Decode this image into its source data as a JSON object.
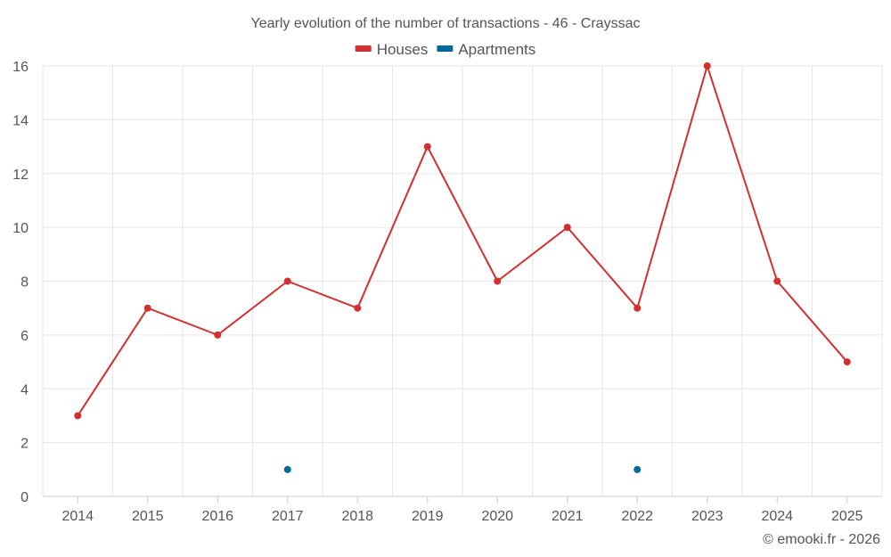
{
  "chart_data": {
    "type": "line",
    "title": "Yearly evolution of the number of transactions - 46 - Crayssac",
    "categories": [
      "2014",
      "2015",
      "2016",
      "2017",
      "2018",
      "2019",
      "2020",
      "2021",
      "2022",
      "2023",
      "2024",
      "2025"
    ],
    "series": [
      {
        "name": "Houses",
        "color": "#d32f2f",
        "values": [
          3,
          7,
          6,
          8,
          7,
          13,
          8,
          10,
          7,
          16,
          8,
          5
        ]
      },
      {
        "name": "Apartments",
        "color": "#01689b",
        "values": [
          null,
          null,
          null,
          1,
          null,
          null,
          null,
          null,
          1,
          null,
          null,
          null
        ]
      }
    ],
    "xlabel": "",
    "ylabel": "",
    "ylim": [
      0,
      16
    ],
    "yticks": [
      0,
      2,
      4,
      6,
      8,
      10,
      12,
      14,
      16
    ],
    "grid": true,
    "legend_position": "top-center"
  },
  "credit": "© emooki.fr - 2026"
}
